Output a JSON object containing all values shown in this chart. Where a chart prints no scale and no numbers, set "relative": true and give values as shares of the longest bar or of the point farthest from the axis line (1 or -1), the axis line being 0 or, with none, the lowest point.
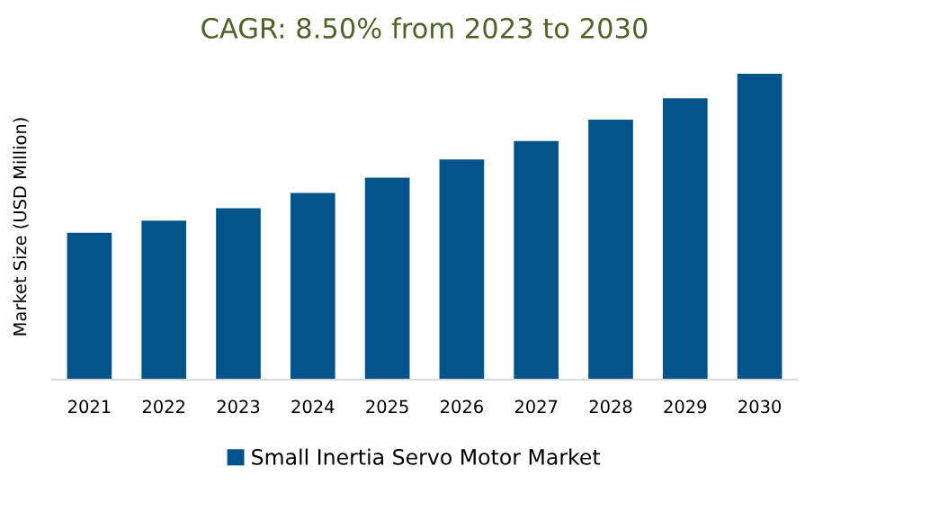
{
  "chart_data": {
    "type": "bar",
    "title": "CAGR: 8.50% from 2023 to 2030",
    "ylabel": "Market Size (USD Million)",
    "relative": true,
    "categories": [
      "2021",
      "2022",
      "2023",
      "2024",
      "2025",
      "2026",
      "2027",
      "2028",
      "2029",
      "2030"
    ],
    "series": [
      {
        "name": "Small Inertia Servo Motor Market",
        "color": "#02538a",
        "values": [
          0.48,
          0.52,
          0.56,
          0.61,
          0.66,
          0.72,
          0.78,
          0.85,
          0.92,
          1.0
        ]
      }
    ],
    "legend": "bottom",
    "grid": false
  }
}
